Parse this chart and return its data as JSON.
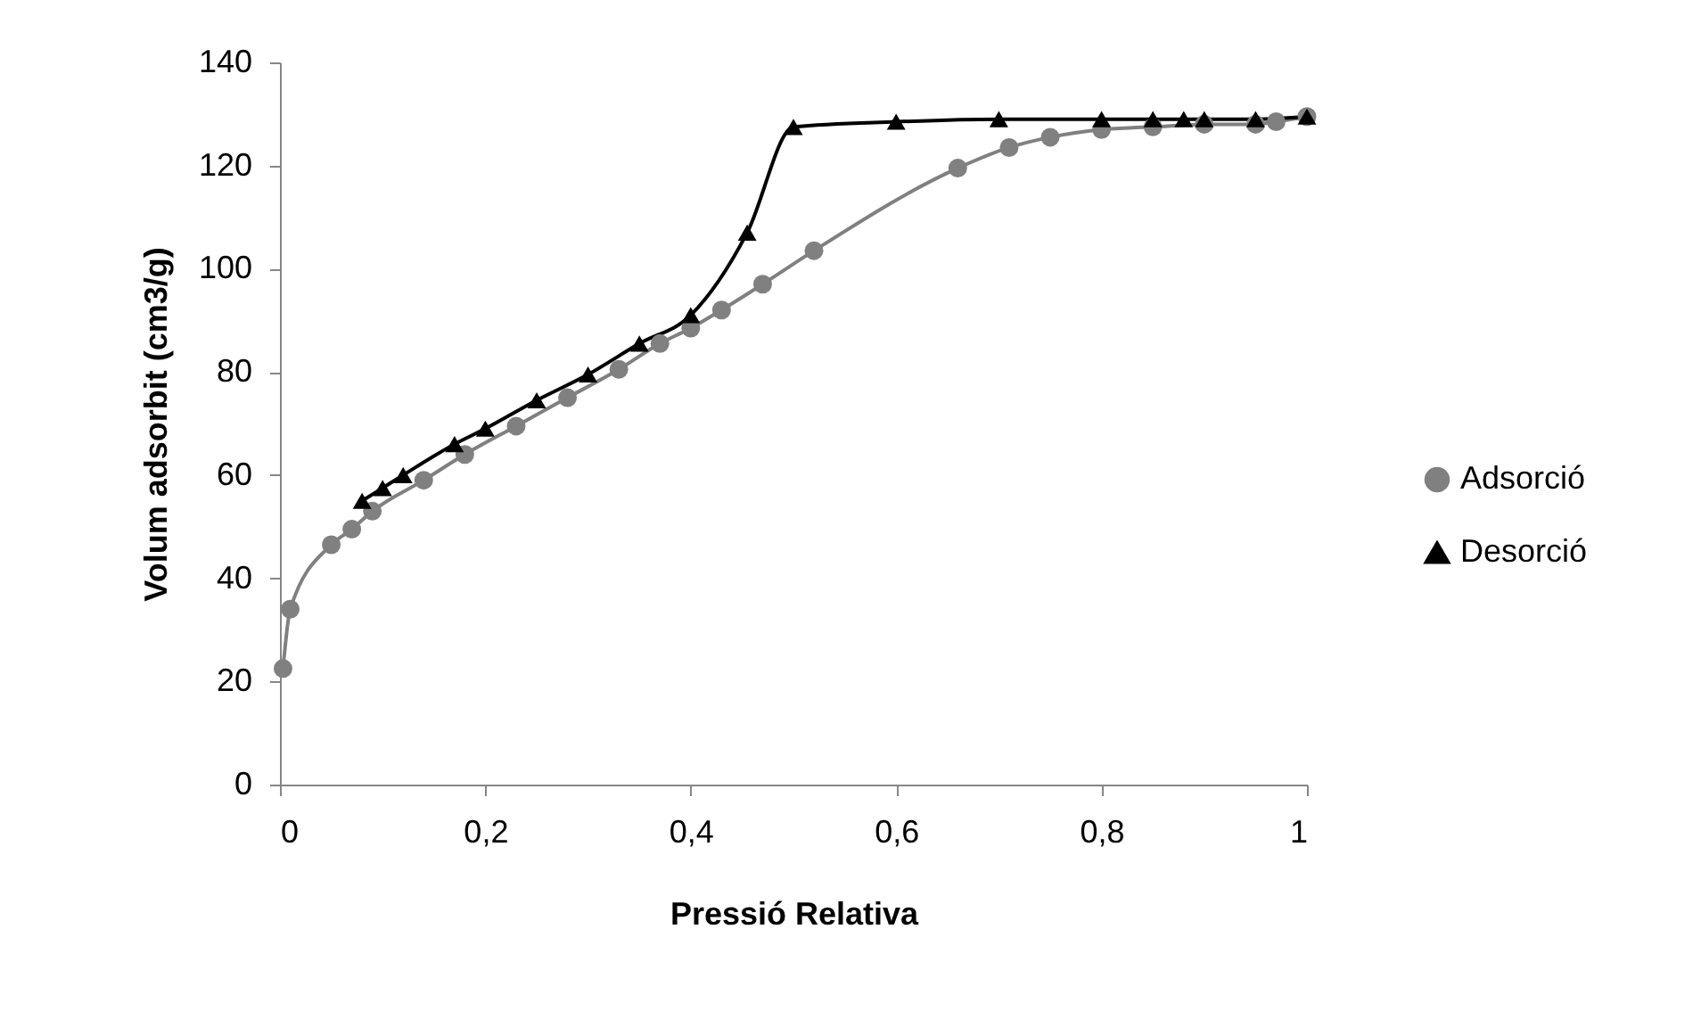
{
  "chart_data": {
    "type": "line",
    "xlabel": "Pressió Relativa",
    "ylabel": "Volum adsorbit (cm3/g)",
    "xlim": [
      0,
      1
    ],
    "ylim": [
      0,
      140
    ],
    "xticks": [
      0,
      {
        "value": 0.2,
        "label": "0,2"
      },
      {
        "value": 0.4,
        "label": "0,4"
      },
      {
        "value": 0.6,
        "label": "0,6"
      },
      {
        "value": 0.8,
        "label": "0,8"
      },
      1
    ],
    "yticks": [
      0,
      20,
      40,
      60,
      80,
      100,
      120,
      140
    ],
    "grid": false,
    "legend": "right",
    "series": [
      {
        "name": "Adsorció",
        "color": "#808080",
        "marker": "circle",
        "x": [
          0.003,
          0.01,
          0.05,
          0.07,
          0.09,
          0.14,
          0.18,
          0.23,
          0.28,
          0.33,
          0.37,
          0.4,
          0.43,
          0.47,
          0.52,
          0.66,
          0.71,
          0.75,
          0.8,
          0.85,
          0.9,
          0.95,
          0.97,
          1.0
        ],
        "values": [
          22.5,
          34,
          46.5,
          49.5,
          53,
          59,
          64,
          69.5,
          75,
          80.5,
          85.5,
          88.5,
          92,
          97,
          103.5,
          119.5,
          123.5,
          125.5,
          127,
          127.5,
          128,
          128,
          128.5,
          129.5
        ]
      },
      {
        "name": "Desorció",
        "color": "#000000",
        "marker": "triangle",
        "x": [
          0.08,
          0.1,
          0.12,
          0.17,
          0.2,
          0.25,
          0.3,
          0.35,
          0.4,
          0.455,
          0.5,
          0.6,
          0.7,
          0.8,
          0.85,
          0.88,
          0.9,
          0.95,
          1.0
        ],
        "values": [
          55,
          57.5,
          60,
          66,
          69,
          74.5,
          79.5,
          85.5,
          91,
          107,
          127.5,
          128.5,
          129,
          129,
          129,
          129,
          129,
          129,
          129.5
        ]
      }
    ]
  }
}
